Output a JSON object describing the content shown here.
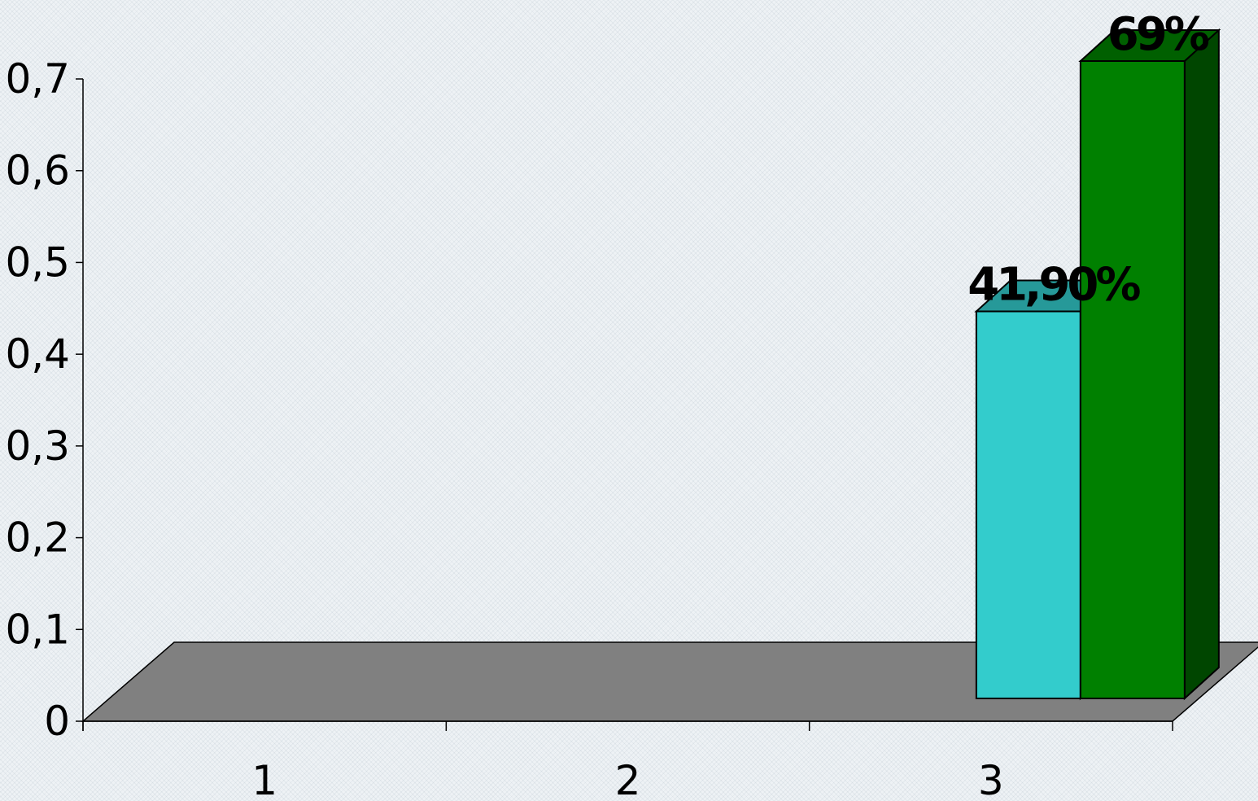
{
  "chart_data": {
    "type": "bar",
    "style": "3d-clustered-column",
    "categories": [
      "1",
      "2",
      "3"
    ],
    "series": [
      {
        "color": "#33cccc",
        "values": [
          0,
          0,
          0.419
        ],
        "labels": [
          "",
          "",
          "41,90%"
        ]
      },
      {
        "color": "#008000",
        "values": [
          0,
          0,
          0.69
        ],
        "labels": [
          "",
          "",
          "69%"
        ]
      }
    ],
    "ylim": [
      0,
      0.7
    ],
    "yticks": [
      "0",
      "0,1",
      "0,2",
      "0,3",
      "0,4",
      "0,5",
      "0,6",
      "0,7"
    ],
    "floor_color": "#808080",
    "grid": false,
    "legend": "none"
  }
}
